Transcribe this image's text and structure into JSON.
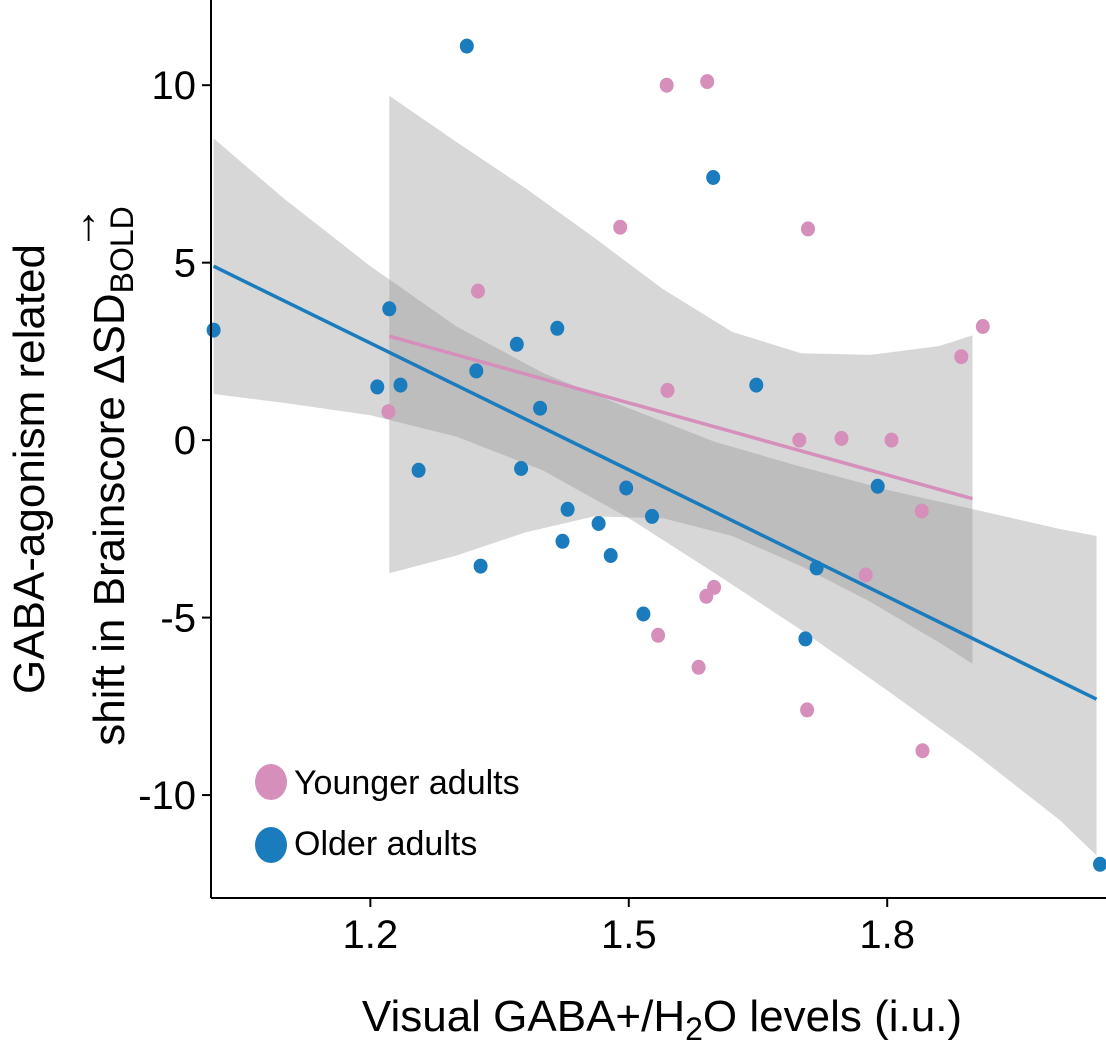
{
  "chart_data": {
    "type": "scatter",
    "xlabel": {
      "main": "Visual GABA+/H",
      "sub": "2",
      "rest": "O levels (i.u.)"
    },
    "ylabel": {
      "line1": "GABA-agonism related",
      "line2_prefix": "shift in Brainscore",
      "line2_symbol": "ΔSD",
      "line2_sub": "BOLD",
      "arrow": "→"
    },
    "x_ticks": [
      1.2,
      1.5,
      1.8
    ],
    "x_tick_labels": [
      "1.2",
      "1.5",
      "1.8"
    ],
    "y_ticks": [
      10,
      5,
      0,
      -5,
      -10
    ],
    "y_tick_labels": [
      "10",
      "5",
      "0",
      "-5",
      "-10"
    ],
    "xlim": [
      1.015,
      2.054
    ],
    "ylim": [
      -12.9,
      12.4
    ],
    "grid": false,
    "legend_position": "bottom-left",
    "series": [
      {
        "name": "Younger adults",
        "color": "#d58fba",
        "points": [
          {
            "x": 1.221,
            "y": 0.8
          },
          {
            "x": 1.325,
            "y": 4.2
          },
          {
            "x": 1.49,
            "y": 6.0
          },
          {
            "x": 1.544,
            "y": 10.0
          },
          {
            "x": 1.591,
            "y": 10.1
          },
          {
            "x": 1.545,
            "y": 1.4
          },
          {
            "x": 1.708,
            "y": 5.95
          },
          {
            "x": 1.698,
            "y": 0.0
          },
          {
            "x": 1.747,
            "y": 0.05
          },
          {
            "x": 1.805,
            "y": 0.0
          },
          {
            "x": 1.886,
            "y": 2.35
          },
          {
            "x": 1.911,
            "y": 3.2
          },
          {
            "x": 1.84,
            "y": -2.0
          },
          {
            "x": 1.599,
            "y": -4.15
          },
          {
            "x": 1.59,
            "y": -4.4
          },
          {
            "x": 1.775,
            "y": -3.8
          },
          {
            "x": 1.534,
            "y": -5.5
          },
          {
            "x": 1.581,
            "y": -6.4
          },
          {
            "x": 1.707,
            "y": -7.6
          },
          {
            "x": 1.841,
            "y": -8.75
          }
        ],
        "fit": {
          "x": [
            1.222,
            1.899
          ],
          "y": [
            2.93,
            -1.65
          ]
        },
        "ci": {
          "x": [
            1.222,
            1.3,
            1.38,
            1.46,
            1.54,
            1.62,
            1.7,
            1.78,
            1.86,
            1.899
          ],
          "upper": [
            9.7,
            8.4,
            7.1,
            5.7,
            4.25,
            3.05,
            2.45,
            2.4,
            2.65,
            2.95
          ],
          "lower": [
            -3.75,
            -3.25,
            -2.6,
            -2.15,
            -2.2,
            -2.7,
            -3.55,
            -4.55,
            -5.7,
            -6.3
          ]
        }
      },
      {
        "name": "Older adults",
        "color": "#1a7bbd",
        "points": [
          {
            "x": 1.018,
            "y": 3.1
          },
          {
            "x": 1.208,
            "y": 1.5
          },
          {
            "x": 1.222,
            "y": 3.7
          },
          {
            "x": 1.235,
            "y": 1.55
          },
          {
            "x": 1.256,
            "y": -0.85
          },
          {
            "x": 1.312,
            "y": 11.1
          },
          {
            "x": 1.323,
            "y": 1.95
          },
          {
            "x": 1.328,
            "y": -3.55
          },
          {
            "x": 1.37,
            "y": 2.7
          },
          {
            "x": 1.375,
            "y": -0.8
          },
          {
            "x": 1.397,
            "y": 0.9
          },
          {
            "x": 1.417,
            "y": 3.15
          },
          {
            "x": 1.423,
            "y": -2.85
          },
          {
            "x": 1.429,
            "y": -1.95
          },
          {
            "x": 1.465,
            "y": -2.35
          },
          {
            "x": 1.479,
            "y": -3.25
          },
          {
            "x": 1.497,
            "y": -1.35
          },
          {
            "x": 1.517,
            "y": -4.9
          },
          {
            "x": 1.527,
            "y": -2.15
          },
          {
            "x": 1.598,
            "y": 7.4
          },
          {
            "x": 1.648,
            "y": 1.55
          },
          {
            "x": 1.705,
            "y": -5.6
          },
          {
            "x": 1.718,
            "y": -3.6
          },
          {
            "x": 1.789,
            "y": -1.3
          },
          {
            "x": 2.047,
            "y": -11.95
          }
        ],
        "fit": {
          "x": [
            1.018,
            2.043
          ],
          "y": [
            4.9,
            -7.3
          ]
        },
        "ci": {
          "x": [
            1.018,
            1.1,
            1.2,
            1.3,
            1.4,
            1.5,
            1.6,
            1.7,
            1.8,
            1.9,
            2.0,
            2.043
          ],
          "upper": [
            8.5,
            6.8,
            4.9,
            3.2,
            1.9,
            0.9,
            -0.05,
            -0.75,
            -1.4,
            -1.95,
            -2.5,
            -2.7
          ],
          "lower": [
            1.3,
            1.05,
            0.7,
            0.1,
            -0.85,
            -2.2,
            -3.75,
            -5.35,
            -7.05,
            -8.8,
            -10.7,
            -11.7
          ]
        }
      }
    ],
    "ci_color": "#8c8c8c",
    "ci_opacity": 0.35
  }
}
